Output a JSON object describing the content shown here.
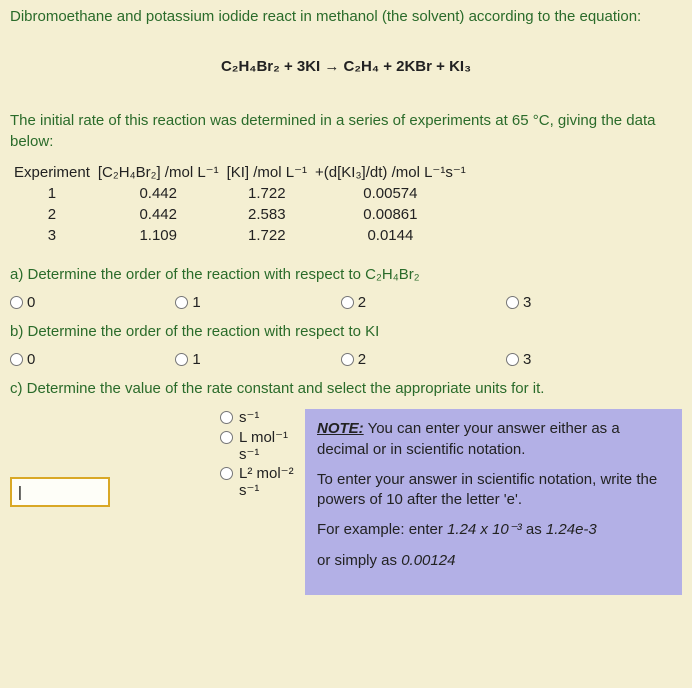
{
  "intro1": "Dibromoethane and potassium iodide react in methanol (the solvent) according to the equation:",
  "equation": "C₂H₄Br₂ + 3KI → C₂H₄ + 2KBr + KI₃",
  "intro2": "The initial rate of this reaction was determined in a series of experiments at 65 °C, giving the data below:",
  "table": {
    "headers": {
      "exp": "Experiment",
      "c1": "[C₂H₄Br₂] /mol L⁻¹",
      "c2": "[KI] /mol L⁻¹",
      "c3": "+(d[KI₃]/dt) /mol L⁻¹s⁻¹"
    },
    "rows": [
      {
        "exp": "1",
        "c1": "0.442",
        "c2": "1.722",
        "c3": "0.00574"
      },
      {
        "exp": "2",
        "c1": "0.442",
        "c2": "2.583",
        "c3": "0.00861"
      },
      {
        "exp": "3",
        "c1": "1.109",
        "c2": "1.722",
        "c3": "0.0144"
      }
    ]
  },
  "qa": {
    "label": "a) Determine the order of the reaction with respect to C₂H₄Br₂",
    "opts": [
      "0",
      "1",
      "2",
      "3"
    ]
  },
  "qb": {
    "label": "b) Determine the order of the reaction with respect to KI",
    "opts": [
      "0",
      "1",
      "2",
      "3"
    ]
  },
  "qc": {
    "label": "c) Determine the value of the rate constant and select the appropriate units for it.",
    "units": [
      "s⁻¹",
      "L mol⁻¹ s⁻¹",
      "L² mol⁻² s⁻¹"
    ]
  },
  "note": {
    "title": "NOTE:",
    "p1a": " You can enter your answer either as a decimal or in scientific notation.",
    "p2": "To enter your answer in scientific notation, write the powers of 10 after the letter 'e'.",
    "p3a": "For example: enter ",
    "p3b": "1.24 x 10⁻³",
    "p3c": " as ",
    "p3d": "1.24e-3",
    "p4a": "or simply as ",
    "p4b": "0.00124"
  }
}
